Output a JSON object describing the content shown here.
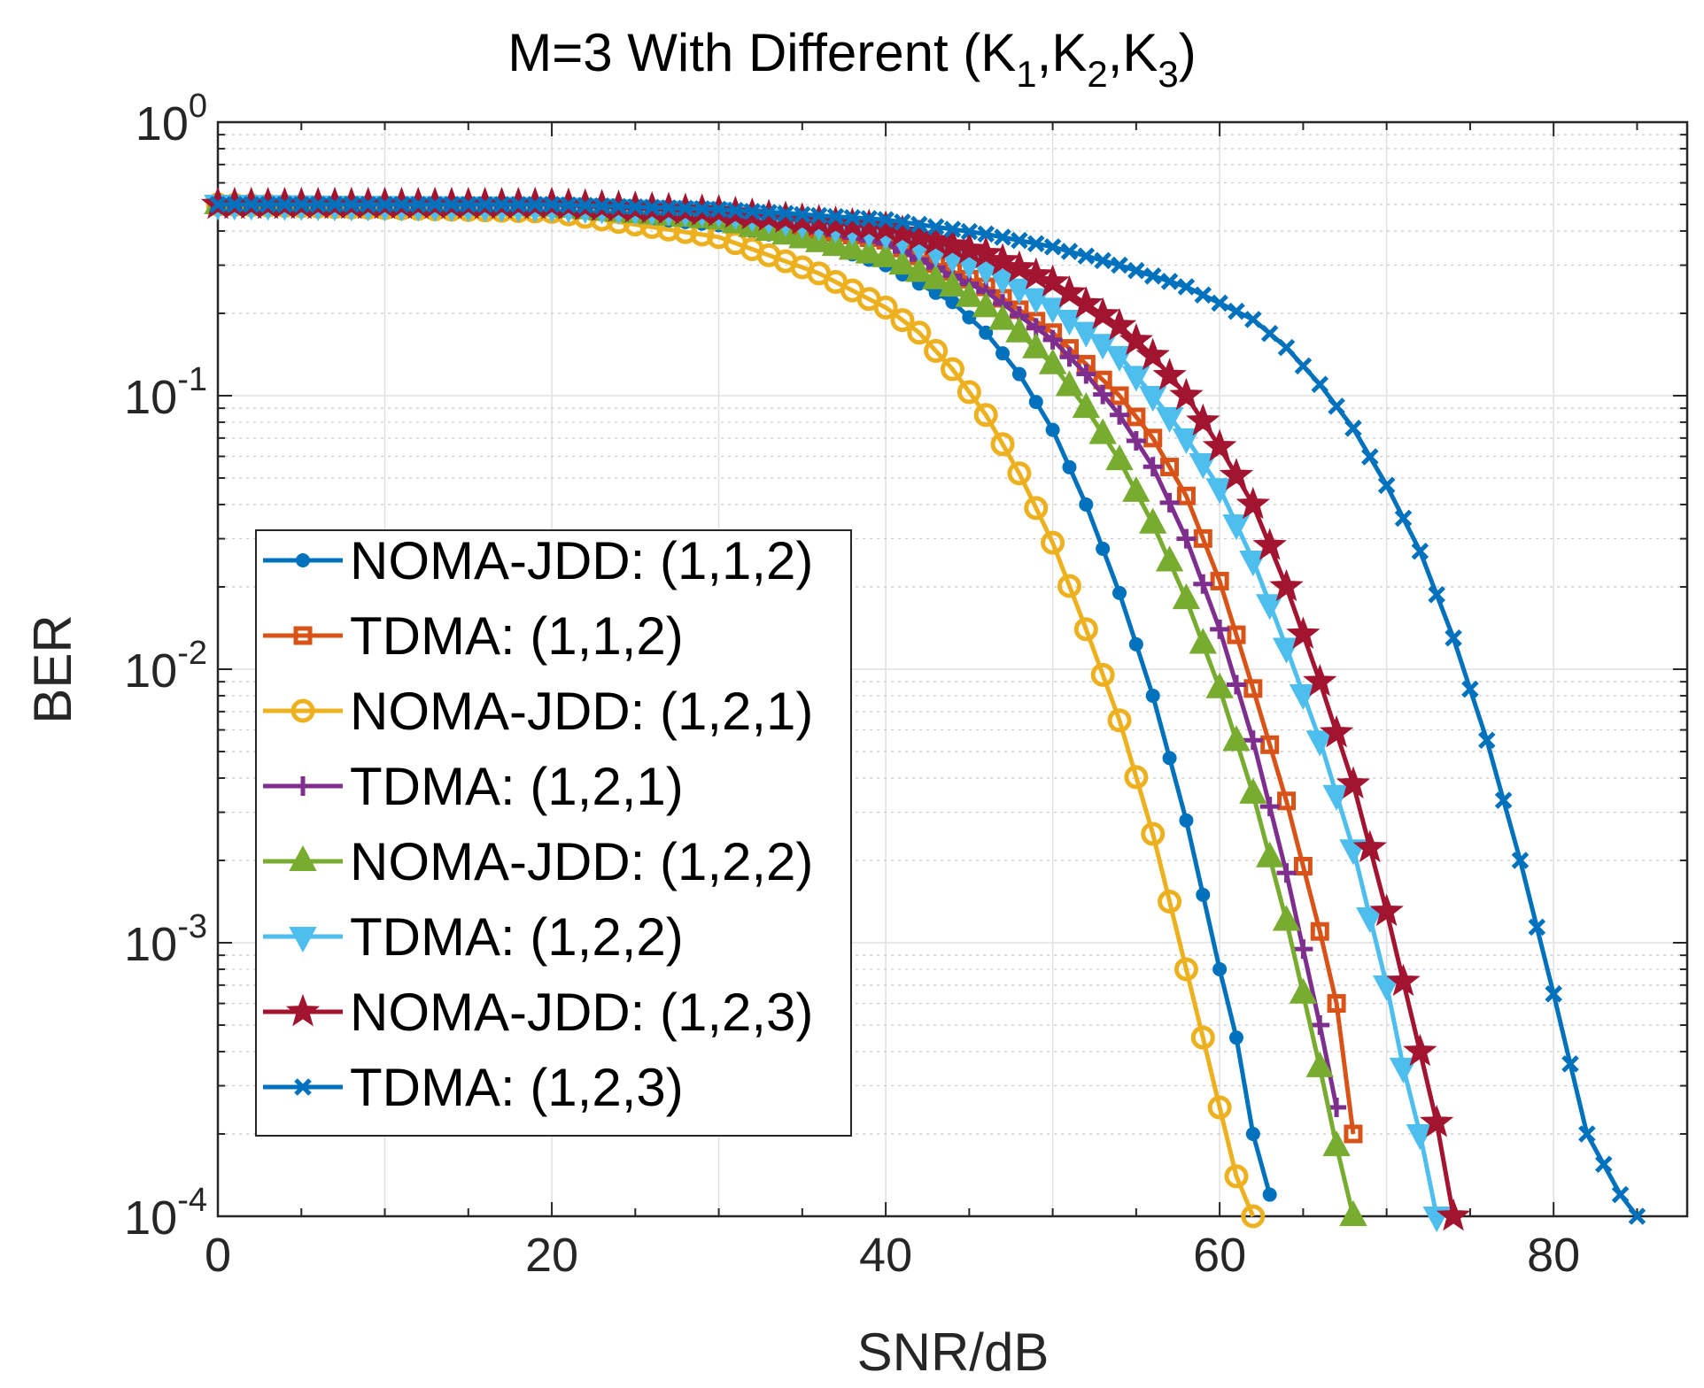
{
  "chart_data": {
    "type": "line",
    "title": "M=3 With Different (K",
    "title_parts": [
      "M=3 With Different (K",
      "1",
      ",K",
      "2",
      ",K",
      "3",
      ")"
    ],
    "xlabel": "SNR/dB",
    "ylabel": "BER",
    "xlim": [
      0,
      88
    ],
    "ylim": [
      0.0001,
      1
    ],
    "y_scale": "log",
    "grid": true,
    "legend_position": "center-left",
    "x_ticks": [
      0,
      20,
      40,
      60,
      80
    ],
    "x_tick_labels": [
      "0",
      "20",
      "40",
      "60",
      "80"
    ],
    "y_ticks": [
      {
        "value": 1,
        "base": "10",
        "exp": "0"
      },
      {
        "value": 0.1,
        "base": "10",
        "exp": "-1"
      },
      {
        "value": 0.01,
        "base": "10",
        "exp": "-2"
      },
      {
        "value": 0.001,
        "base": "10",
        "exp": "-3"
      },
      {
        "value": 0.0001,
        "base": "10",
        "exp": "-4"
      }
    ],
    "series": [
      {
        "name": "NOMA-JDD: (1,1,2)",
        "color": "#0072BD",
        "marker": "dot",
        "x": [
          0,
          20,
          30,
          36,
          40,
          44,
          46,
          48,
          50,
          52,
          54,
          56,
          58,
          60,
          61,
          62,
          63
        ],
        "y": [
          0.5,
          0.48,
          0.42,
          0.36,
          0.3,
          0.22,
          0.17,
          0.12,
          0.075,
          0.04,
          0.019,
          0.008,
          0.0028,
          0.0008,
          0.00045,
          0.0002,
          0.00012
        ]
      },
      {
        "name": "TDMA: (1,1,2)",
        "color": "#D95319",
        "marker": "square",
        "x": [
          0,
          20,
          30,
          40,
          46,
          50,
          54,
          56,
          58,
          60,
          62,
          64,
          66,
          67,
          68
        ],
        "y": [
          0.5,
          0.49,
          0.46,
          0.37,
          0.25,
          0.17,
          0.1,
          0.07,
          0.043,
          0.021,
          0.0085,
          0.0033,
          0.0011,
          0.0006,
          0.0002
        ]
      },
      {
        "name": "NOMA-JDD: (1,2,1)",
        "color": "#EDB120",
        "marker": "circle",
        "x": [
          0,
          20,
          30,
          36,
          40,
          42,
          44,
          46,
          48,
          50,
          52,
          54,
          56,
          58,
          59,
          60,
          61,
          62
        ],
        "y": [
          0.5,
          0.47,
          0.38,
          0.28,
          0.21,
          0.17,
          0.125,
          0.085,
          0.052,
          0.029,
          0.014,
          0.0065,
          0.0025,
          0.0008,
          0.00045,
          0.00025,
          0.00014,
          0.0001
        ]
      },
      {
        "name": "TDMA: (1,2,1)",
        "color": "#7E2F8E",
        "marker": "plus",
        "x": [
          0,
          20,
          30,
          40,
          46,
          50,
          52,
          54,
          56,
          58,
          60,
          62,
          64,
          66,
          67
        ],
        "y": [
          0.5,
          0.49,
          0.46,
          0.36,
          0.24,
          0.16,
          0.12,
          0.085,
          0.055,
          0.03,
          0.014,
          0.0055,
          0.0018,
          0.0005,
          0.00025
        ]
      },
      {
        "name": "NOMA-JDD: (1,2,2)",
        "color": "#77AC30",
        "marker": "triangle-up",
        "x": [
          0,
          20,
          30,
          40,
          44,
          46,
          48,
          50,
          52,
          54,
          56,
          58,
          60,
          62,
          64,
          65,
          66,
          67,
          68
        ],
        "y": [
          0.5,
          0.49,
          0.44,
          0.32,
          0.25,
          0.21,
          0.17,
          0.13,
          0.09,
          0.058,
          0.034,
          0.018,
          0.0085,
          0.0035,
          0.0012,
          0.00065,
          0.00035,
          0.00018,
          0.0001
        ]
      },
      {
        "name": "TDMA: (1,2,2)",
        "color": "#4DBEEE",
        "marker": "triangle-down",
        "x": [
          0,
          20,
          30,
          40,
          46,
          50,
          54,
          56,
          58,
          60,
          62,
          64,
          66,
          68,
          70,
          71,
          72,
          73
        ],
        "y": [
          0.5,
          0.49,
          0.47,
          0.39,
          0.29,
          0.21,
          0.14,
          0.1,
          0.07,
          0.046,
          0.025,
          0.012,
          0.0055,
          0.0022,
          0.0007,
          0.00035,
          0.0002,
          0.0001
        ]
      },
      {
        "name": "NOMA-JDD: (1,2,3)",
        "color": "#A2142F",
        "marker": "star",
        "x": [
          0,
          20,
          30,
          40,
          46,
          50,
          54,
          56,
          58,
          60,
          62,
          64,
          66,
          68,
          70,
          72,
          73,
          74
        ],
        "y": [
          0.5,
          0.5,
          0.47,
          0.41,
          0.33,
          0.26,
          0.18,
          0.14,
          0.1,
          0.065,
          0.04,
          0.02,
          0.009,
          0.0038,
          0.0013,
          0.0004,
          0.00022,
          0.0001
        ]
      },
      {
        "name": "TDMA: (1,2,3)",
        "color": "#0072BD",
        "marker": "x",
        "x": [
          0,
          20,
          30,
          40,
          46,
          50,
          54,
          58,
          62,
          64,
          66,
          68,
          70,
          72,
          74,
          76,
          78,
          80,
          82,
          84,
          85
        ],
        "y": [
          0.5,
          0.5,
          0.48,
          0.44,
          0.39,
          0.35,
          0.3,
          0.25,
          0.19,
          0.15,
          0.11,
          0.076,
          0.047,
          0.027,
          0.013,
          0.0055,
          0.002,
          0.00065,
          0.0002,
          0.00012,
          0.0001
        ]
      }
    ]
  }
}
